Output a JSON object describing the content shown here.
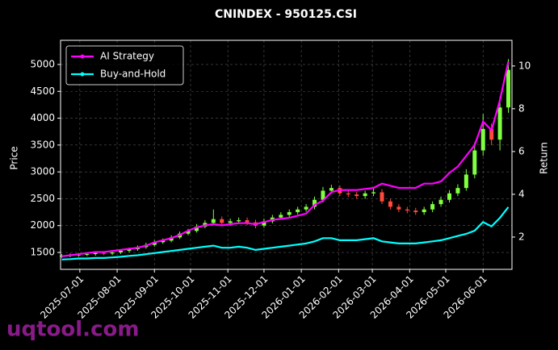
{
  "chart_data": {
    "type": "candlestick",
    "title": "CNINDEX - 950125.CSI",
    "ylabel": "Price",
    "y2label": "Return",
    "watermark": "uqtool.com",
    "x": [
      "2025-06-16",
      "2025-06-23",
      "2025-06-30",
      "2025-07-07",
      "2025-07-14",
      "2025-07-21",
      "2025-07-28",
      "2025-08-04",
      "2025-08-11",
      "2025-08-18",
      "2025-08-25",
      "2025-09-01",
      "2025-09-08",
      "2025-09-15",
      "2025-09-22",
      "2025-09-29",
      "2025-10-06",
      "2025-10-13",
      "2025-10-20",
      "2025-10-27",
      "2025-11-03",
      "2025-11-10",
      "2025-11-17",
      "2025-11-24",
      "2025-12-01",
      "2025-12-08",
      "2025-12-15",
      "2025-12-22",
      "2025-12-29",
      "2026-01-05",
      "2026-01-12",
      "2026-01-19",
      "2026-01-26",
      "2026-02-02",
      "2026-02-09",
      "2026-02-16",
      "2026-02-23",
      "2026-03-02",
      "2026-03-09",
      "2026-03-16",
      "2026-03-23",
      "2026-03-30",
      "2026-04-06",
      "2026-04-13",
      "2026-04-20",
      "2026-04-27",
      "2026-05-04",
      "2026-05-11",
      "2026-05-18",
      "2026-05-25",
      "2026-06-01",
      "2026-06-08",
      "2026-06-15",
      "2026-06-22"
    ],
    "open": [
      1430,
      1440,
      1450,
      1460,
      1470,
      1490,
      1480,
      1500,
      1530,
      1560,
      1600,
      1640,
      1690,
      1720,
      1780,
      1850,
      1900,
      1980,
      2050,
      2120,
      2050,
      2080,
      2100,
      2060,
      2000,
      2080,
      2150,
      2200,
      2250,
      2300,
      2350,
      2480,
      2650,
      2700,
      2600,
      2580,
      2550,
      2600,
      2620,
      2450,
      2350,
      2300,
      2280,
      2250,
      2300,
      2400,
      2480,
      2600,
      2700,
      2950,
      3400,
      3800,
      3600,
      4200
    ],
    "high": [
      1470,
      1480,
      1490,
      1500,
      1520,
      1520,
      1530,
      1560,
      1590,
      1630,
      1680,
      1730,
      1760,
      1820,
      1890,
      1940,
      2030,
      2100,
      2300,
      2170,
      2130,
      2150,
      2150,
      2110,
      2130,
      2200,
      2250,
      2300,
      2350,
      2400,
      2540,
      2720,
      2760,
      2750,
      2650,
      2630,
      2650,
      2700,
      2680,
      2500,
      2400,
      2350,
      2330,
      2350,
      2450,
      2540,
      2660,
      2770,
      3050,
      3550,
      4080,
      3900,
      4400,
      5100
    ],
    "low": [
      1400,
      1410,
      1420,
      1430,
      1440,
      1450,
      1450,
      1470,
      1500,
      1530,
      1570,
      1610,
      1660,
      1690,
      1750,
      1820,
      1870,
      1950,
      2010,
      2000,
      2000,
      2030,
      2010,
      1950,
      1960,
      2040,
      2110,
      2160,
      2210,
      2260,
      2300,
      2430,
      2600,
      2550,
      2530,
      2500,
      2500,
      2550,
      2400,
      2300,
      2250,
      2230,
      2200,
      2200,
      2250,
      2350,
      2430,
      2550,
      2650,
      2880,
      3300,
      3500,
      3400,
      4100
    ],
    "close": [
      1440,
      1450,
      1460,
      1470,
      1490,
      1480,
      1500,
      1530,
      1560,
      1600,
      1640,
      1690,
      1720,
      1780,
      1850,
      1900,
      1980,
      2050,
      2120,
      2050,
      2080,
      2100,
      2060,
      2000,
      2080,
      2150,
      2200,
      2250,
      2300,
      2350,
      2480,
      2650,
      2700,
      2600,
      2580,
      2550,
      2600,
      2620,
      2450,
      2350,
      2300,
      2280,
      2250,
      2300,
      2400,
      2480,
      2600,
      2700,
      2950,
      3400,
      3800,
      3600,
      4200,
      4900
    ],
    "up_color": "#7fff3f",
    "down_color": "#ff4a3a",
    "series": [
      {
        "name": "AI Strategy",
        "color": "#ff00ff",
        "axis": "y2",
        "values": [
          1.1,
          1.15,
          1.2,
          1.25,
          1.3,
          1.3,
          1.35,
          1.4,
          1.45,
          1.5,
          1.6,
          1.75,
          1.85,
          1.95,
          2.1,
          2.3,
          2.45,
          2.55,
          2.6,
          2.55,
          2.6,
          2.65,
          2.65,
          2.6,
          2.7,
          2.8,
          2.85,
          2.9,
          3.0,
          3.1,
          3.5,
          3.7,
          4.1,
          4.2,
          4.2,
          4.2,
          4.25,
          4.3,
          4.5,
          4.4,
          4.3,
          4.3,
          4.3,
          4.5,
          4.5,
          4.6,
          5.0,
          5.3,
          5.8,
          6.3,
          7.4,
          7.0,
          8.4,
          10.2
        ]
      },
      {
        "name": "Buy-and-Hold",
        "color": "#00ffff",
        "axis": "y2",
        "values": [
          0.95,
          0.97,
          1.0,
          1.0,
          1.02,
          1.02,
          1.05,
          1.08,
          1.12,
          1.15,
          1.2,
          1.25,
          1.3,
          1.35,
          1.4,
          1.45,
          1.5,
          1.55,
          1.6,
          1.5,
          1.5,
          1.55,
          1.5,
          1.4,
          1.45,
          1.5,
          1.55,
          1.6,
          1.65,
          1.7,
          1.8,
          1.95,
          1.95,
          1.85,
          1.85,
          1.85,
          1.9,
          1.95,
          1.8,
          1.75,
          1.7,
          1.7,
          1.7,
          1.75,
          1.8,
          1.85,
          1.95,
          2.05,
          2.15,
          2.3,
          2.7,
          2.5,
          2.9,
          3.4
        ]
      }
    ],
    "xlim": [
      "2025-06-15",
      "2026-06-25"
    ],
    "xticks": [
      "2025-07-01",
      "2025-08-01",
      "2025-09-01",
      "2025-10-01",
      "2025-11-01",
      "2025-12-01",
      "2026-01-01",
      "2026-02-01",
      "2026-03-01",
      "2026-04-01",
      "2026-05-01",
      "2026-06-01"
    ],
    "ylim": [
      1185,
      5450
    ],
    "yticks": [
      1500,
      2000,
      2500,
      3000,
      3500,
      4000,
      4500,
      5000
    ],
    "y2lim": [
      0.49,
      11.2
    ],
    "y2ticks": [
      2,
      4,
      6,
      8,
      10
    ],
    "grid": true,
    "legend": "upper left"
  }
}
